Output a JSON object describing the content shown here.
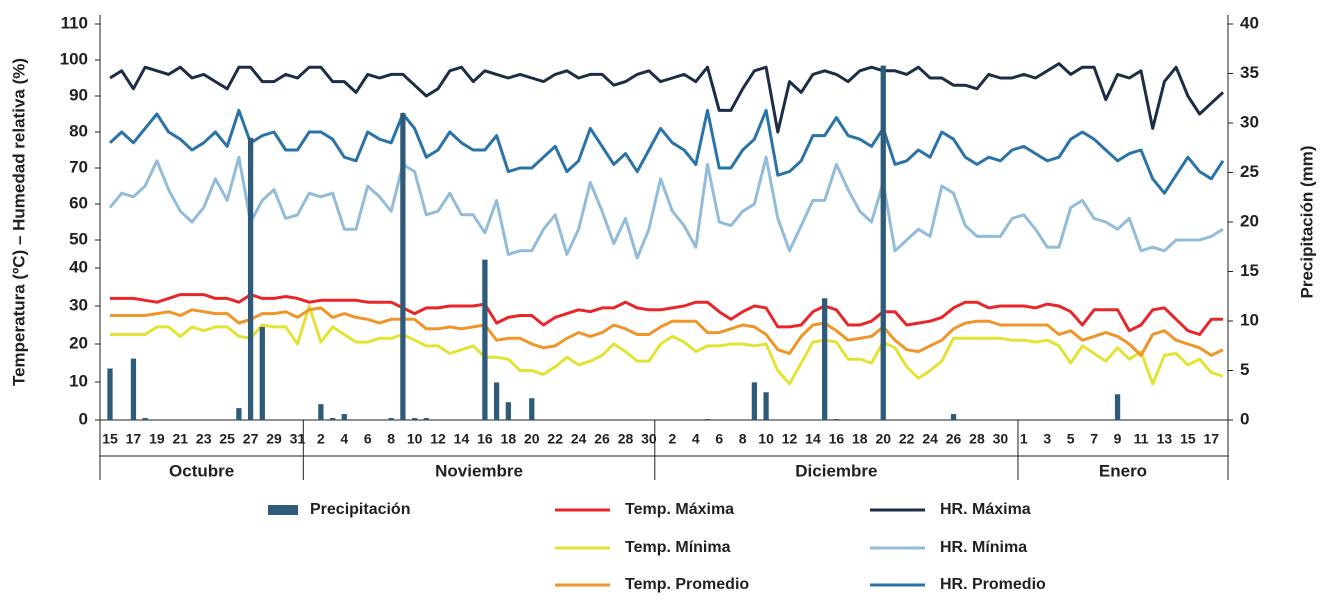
{
  "chart_data": {
    "type": "line",
    "y_label": "Temperatura (ºC) – Humedad relativa (%)",
    "y2_label": "Precipitación (mm)",
    "categories": [
      15,
      null,
      17,
      null,
      19,
      null,
      21,
      null,
      23,
      null,
      25,
      null,
      27,
      null,
      29,
      null,
      31,
      null,
      2,
      null,
      4,
      null,
      6,
      null,
      8,
      null,
      10,
      null,
      12,
      null,
      14,
      null,
      16,
      null,
      18,
      null,
      20,
      null,
      22,
      null,
      24,
      null,
      26,
      null,
      28,
      null,
      30,
      null,
      2,
      null,
      4,
      null,
      6,
      null,
      8,
      null,
      10,
      null,
      12,
      null,
      14,
      null,
      16,
      null,
      18,
      null,
      20,
      null,
      22,
      null,
      24,
      null,
      26,
      null,
      28,
      null,
      30,
      null,
      1,
      null,
      3,
      null,
      5,
      null,
      7,
      null,
      9,
      null,
      11,
      null,
      13,
      null,
      15,
      null,
      17,
      null
    ],
    "months": [
      "Octubre",
      "Noviembre",
      "Diciembre",
      "Enero"
    ],
    "ylim": [
      0,
      40
    ],
    "yticks": [
      0,
      10,
      20,
      30,
      40
    ],
    "hlim": [
      40,
      110
    ],
    "hticks": [
      50,
      60,
      70,
      80,
      90,
      100,
      110
    ],
    "y2lim": [
      0,
      40
    ],
    "y2ticks": [
      0,
      5,
      10,
      15,
      20,
      25,
      30,
      35,
      40
    ],
    "series": [
      {
        "name": "Precipitación",
        "type": "bar",
        "axis": "y2",
        "color": "#2e5b7a",
        "values": [
          5.2,
          0,
          6.2,
          0.2,
          0,
          0,
          0,
          0,
          0,
          0,
          0,
          1.2,
          28.5,
          9.4,
          0,
          0,
          0,
          0,
          1.6,
          0.2,
          0.6,
          0,
          0,
          0,
          0.2,
          31,
          0.2,
          0.2,
          0,
          0,
          0,
          0,
          16.2,
          3.8,
          1.8,
          0,
          2.2,
          0,
          0,
          0,
          0,
          0,
          0,
          0,
          0,
          0,
          0,
          0,
          0,
          0,
          0,
          0.1,
          0,
          0,
          0,
          3.8,
          2.8,
          0,
          0,
          0,
          0,
          12.3,
          0.1,
          0,
          0,
          0,
          35.8,
          0,
          0,
          0,
          0,
          0,
          0.6,
          0,
          0,
          0,
          0,
          0,
          0,
          0,
          0,
          0,
          0,
          0,
          0,
          0,
          2.6,
          0,
          0,
          0,
          0,
          0,
          0,
          0,
          0,
          0
        ]
      },
      {
        "name": "Temp. Máxima",
        "type": "line",
        "axis": "y",
        "color": "#e8262a",
        "values": [
          32,
          32,
          32,
          31.5,
          31,
          32,
          33,
          33,
          33,
          32,
          32,
          31,
          33,
          32,
          32,
          32.5,
          32,
          31,
          31.5,
          31.5,
          31.5,
          31.5,
          31,
          31,
          31,
          29.5,
          28,
          29.5,
          29.5,
          30,
          30,
          30,
          30.5,
          25.5,
          27,
          27.5,
          27.5,
          25,
          27,
          28,
          29,
          28.5,
          29.5,
          29.5,
          31,
          29.5,
          29,
          29,
          29.5,
          30,
          31,
          31,
          28.5,
          26.5,
          28.5,
          30,
          29.5,
          24.5,
          24.5,
          25,
          28.5,
          30,
          29,
          25,
          25,
          26,
          28.5,
          28.5,
          25,
          25.5,
          26,
          27,
          29.5,
          31,
          31,
          29.5,
          30,
          30,
          30,
          29.5,
          30.5,
          30,
          28.5,
          25,
          29,
          29,
          29,
          23.5,
          25,
          29,
          29.5,
          26.5,
          23.5,
          22.5,
          26.5,
          26.5
        ]
      },
      {
        "name": "Temp. Mínima",
        "type": "line",
        "axis": "y",
        "color": "#e3e336",
        "values": [
          22.5,
          22.5,
          22.5,
          22.5,
          24.5,
          24.5,
          22,
          24.5,
          23.5,
          24.5,
          24.5,
          22,
          21.5,
          25,
          24.5,
          24.5,
          20,
          30,
          20.5,
          24.5,
          22.5,
          20.5,
          20.5,
          21.5,
          21.5,
          22.5,
          21,
          19.5,
          19.5,
          17.5,
          18.5,
          19.5,
          16.5,
          16.5,
          16,
          13,
          13,
          12,
          14,
          16.5,
          14.5,
          15.5,
          17,
          20,
          18,
          15.5,
          15.5,
          20,
          22,
          20.5,
          18,
          19.5,
          19.5,
          20,
          20,
          19.5,
          20,
          13,
          9.5,
          15,
          20.5,
          21,
          20.5,
          16,
          16,
          15,
          20.5,
          19,
          14,
          11,
          13,
          15.5,
          21.5,
          21.5,
          21.5,
          21.5,
          21.5,
          21,
          21,
          20.5,
          21,
          19.5,
          15,
          19.5,
          17.5,
          15.5,
          19,
          16,
          18,
          9.5,
          17,
          17.5,
          14.5,
          16,
          12.5,
          11.5
        ]
      },
      {
        "name": "Temp. Promedio",
        "type": "line",
        "axis": "y",
        "color": "#f0952a",
        "values": [
          27.5,
          27.5,
          27.5,
          27.5,
          28,
          28.5,
          27.5,
          29,
          28.5,
          28,
          28,
          25.5,
          26.5,
          28,
          28,
          28.5,
          27,
          29,
          29.5,
          27,
          28,
          27,
          26.5,
          25.5,
          26.5,
          26.5,
          26.5,
          24,
          24,
          24.5,
          24,
          24.5,
          25,
          21,
          21.5,
          21.5,
          20,
          19,
          19.5,
          21.5,
          23,
          22,
          23,
          25,
          24,
          22.5,
          22.5,
          24.5,
          26,
          26,
          26,
          23,
          23,
          24,
          25,
          24.5,
          22.5,
          18.5,
          17.5,
          22,
          25,
          25.5,
          23.5,
          21,
          21.5,
          22,
          24.5,
          21,
          18.5,
          18,
          19.5,
          21,
          24,
          25.5,
          26,
          26,
          25,
          25,
          25,
          25,
          25,
          22.5,
          23.5,
          21,
          22,
          23,
          22,
          20,
          17,
          22.5,
          23.5,
          21,
          20,
          19,
          17,
          18.5
        ]
      },
      {
        "name": "HR. Máxima",
        "type": "line",
        "axis": "h",
        "color": "#1c2d45",
        "values": [
          95,
          97,
          92,
          98,
          97,
          96,
          98,
          95,
          96,
          94,
          92,
          98,
          98,
          94,
          94,
          96,
          95,
          98,
          98,
          94,
          94,
          91,
          96,
          95,
          96,
          96,
          93,
          90,
          92,
          97,
          98,
          94,
          97,
          96,
          95,
          96,
          95,
          94,
          96,
          97,
          95,
          96,
          96,
          93,
          94,
          96,
          97,
          94,
          95,
          96,
          94,
          98,
          86,
          86,
          92,
          97,
          98,
          80,
          94,
          91,
          96,
          97,
          96,
          94,
          97,
          98,
          97,
          97,
          96,
          98,
          95,
          95,
          93,
          93,
          92,
          96,
          95,
          95,
          96,
          95,
          97,
          99,
          96,
          98,
          98,
          89,
          96,
          95,
          97,
          81,
          94,
          98,
          90,
          85,
          88,
          91
        ]
      },
      {
        "name": "HR. Mínima",
        "type": "line",
        "axis": "h",
        "color": "#93bcd9",
        "values": [
          59,
          63,
          62,
          65,
          72,
          64,
          58,
          55,
          59,
          67,
          61,
          73,
          55,
          61,
          64,
          56,
          57,
          63,
          62,
          63,
          53,
          53,
          65,
          62,
          58,
          71,
          69,
          57,
          58,
          63,
          57,
          57,
          52,
          61,
          46,
          47,
          47,
          53,
          57,
          46,
          53,
          66,
          58,
          49,
          56,
          45,
          53,
          67,
          58,
          54,
          48,
          71,
          55,
          54,
          58,
          60,
          73,
          56,
          47,
          54,
          61,
          61,
          71,
          64,
          58,
          55,
          66,
          47,
          50,
          53,
          51,
          65,
          63,
          54,
          51,
          51,
          51,
          56,
          57,
          53,
          48,
          48,
          59,
          61,
          56,
          55,
          53,
          56,
          47,
          48,
          47,
          50,
          50,
          50,
          51,
          53
        ]
      },
      {
        "name": "HR. Promedio",
        "type": "line",
        "axis": "h",
        "color": "#2a73a8",
        "values": [
          77,
          80,
          77,
          81,
          85,
          80,
          78,
          75,
          77,
          80,
          76,
          86,
          77,
          79,
          80,
          75,
          75,
          80,
          80,
          78,
          73,
          72,
          80,
          78,
          77,
          85,
          81,
          73,
          75,
          80,
          77,
          75,
          75,
          79,
          69,
          70,
          70,
          73,
          76,
          69,
          72,
          81,
          76,
          71,
          74,
          69,
          75,
          81,
          77,
          75,
          71,
          86,
          70,
          70,
          75,
          78,
          86,
          68,
          69,
          72,
          79,
          79,
          84,
          79,
          78,
          76,
          81,
          71,
          72,
          75,
          73,
          80,
          78,
          73,
          71,
          73,
          72,
          75,
          76,
          74,
          72,
          73,
          78,
          80,
          78,
          75,
          72,
          74,
          75,
          67,
          63,
          68,
          73,
          69,
          67,
          72
        ]
      }
    ]
  }
}
